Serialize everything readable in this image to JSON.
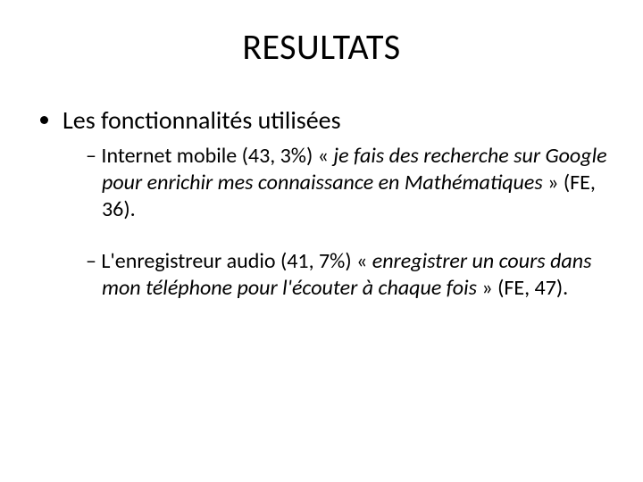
{
  "title": "RESULTATS",
  "bullets": {
    "l1": {
      "text": "Les fonctionnalités utilisées",
      "sub": {
        "a": {
          "pre": "Internet mobile (43, 3%) « ",
          "italic": "je fais des recherche sur Google pour enrichir mes connaissance en Mathématiques",
          "post": " » (FE, 36)."
        },
        "b": {
          "pre": "L'enregistreur audio (41, 7%) « ",
          "italic": "enregistrer un cours dans mon téléphone pour l'écouter à chaque fois",
          "post": " » (FE, 47)."
        }
      }
    }
  }
}
